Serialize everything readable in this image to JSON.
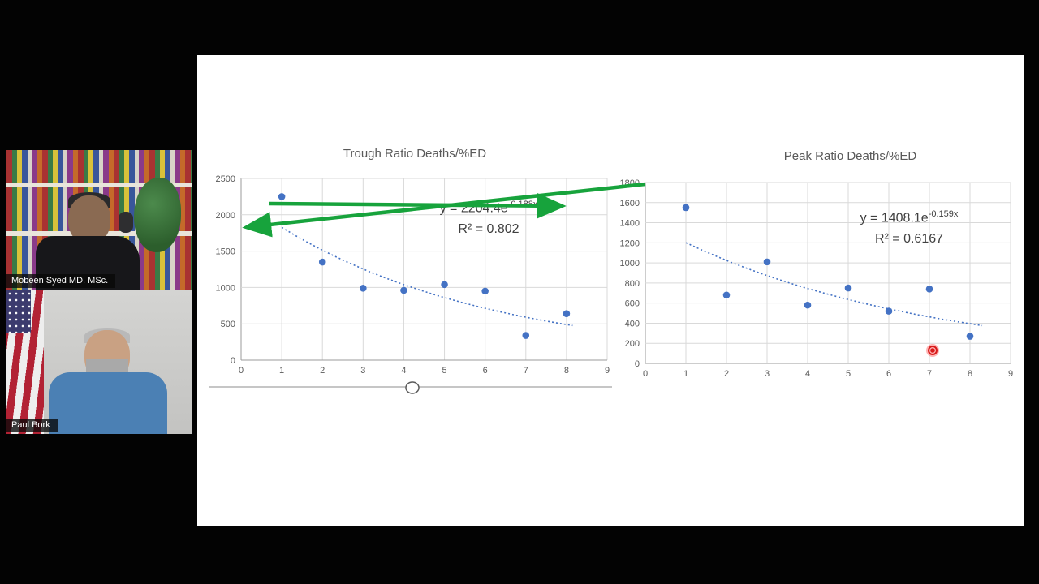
{
  "call": {
    "participants": [
      {
        "name": "Mobeen Syed MD. MSc."
      },
      {
        "name": "Paul Bork"
      }
    ]
  },
  "annotations": {
    "arrow_color": "#17a33c",
    "laser_color": "#d81b1b",
    "laser_glow": "rgba(255,90,90,0.45)"
  },
  "chart_data": [
    {
      "type": "scatter",
      "title": "Trough Ratio Deaths/%ED",
      "x": [
        1,
        2,
        3,
        4,
        5,
        6,
        7,
        8
      ],
      "y": [
        2250,
        1350,
        990,
        960,
        1040,
        950,
        340,
        640
      ],
      "xlim": [
        0,
        9
      ],
      "ylim": [
        0,
        2500
      ],
      "x_ticks": [
        0,
        1,
        2,
        3,
        4,
        5,
        6,
        7,
        8,
        9
      ],
      "y_ticks": [
        0,
        500,
        1000,
        1500,
        2000,
        2500
      ],
      "grid": true,
      "legend": "none",
      "point_color": "#4472c4",
      "trendline": {
        "type": "exponential",
        "eq_base": "y = 2204.4e",
        "eq_exp": "-0.188x",
        "r2": "R² = 0.802",
        "a": 2204.4,
        "b": 0.188,
        "x_start": 1,
        "x_end": 8.15
      }
    },
    {
      "type": "scatter",
      "title": "Peak Ratio Deaths/%ED",
      "x": [
        1,
        2,
        3,
        4,
        5,
        6,
        7,
        8
      ],
      "y": [
        1550,
        680,
        1010,
        580,
        750,
        520,
        740,
        270
      ],
      "xlim": [
        0,
        9
      ],
      "ylim": [
        0,
        1800
      ],
      "x_ticks": [
        0,
        1,
        2,
        3,
        4,
        5,
        6,
        7,
        8,
        9
      ],
      "y_ticks": [
        0,
        200,
        400,
        600,
        800,
        1000,
        1200,
        1400,
        1600,
        1800
      ],
      "grid": true,
      "legend": "none",
      "point_color": "#4472c4",
      "trendline": {
        "type": "exponential",
        "eq_base": "y = 1408.1e",
        "eq_exp": "-0.159x",
        "r2": "R² = 0.6167",
        "a": 1408.1,
        "b": 0.159,
        "x_start": 1,
        "x_end": 8.3
      }
    }
  ]
}
